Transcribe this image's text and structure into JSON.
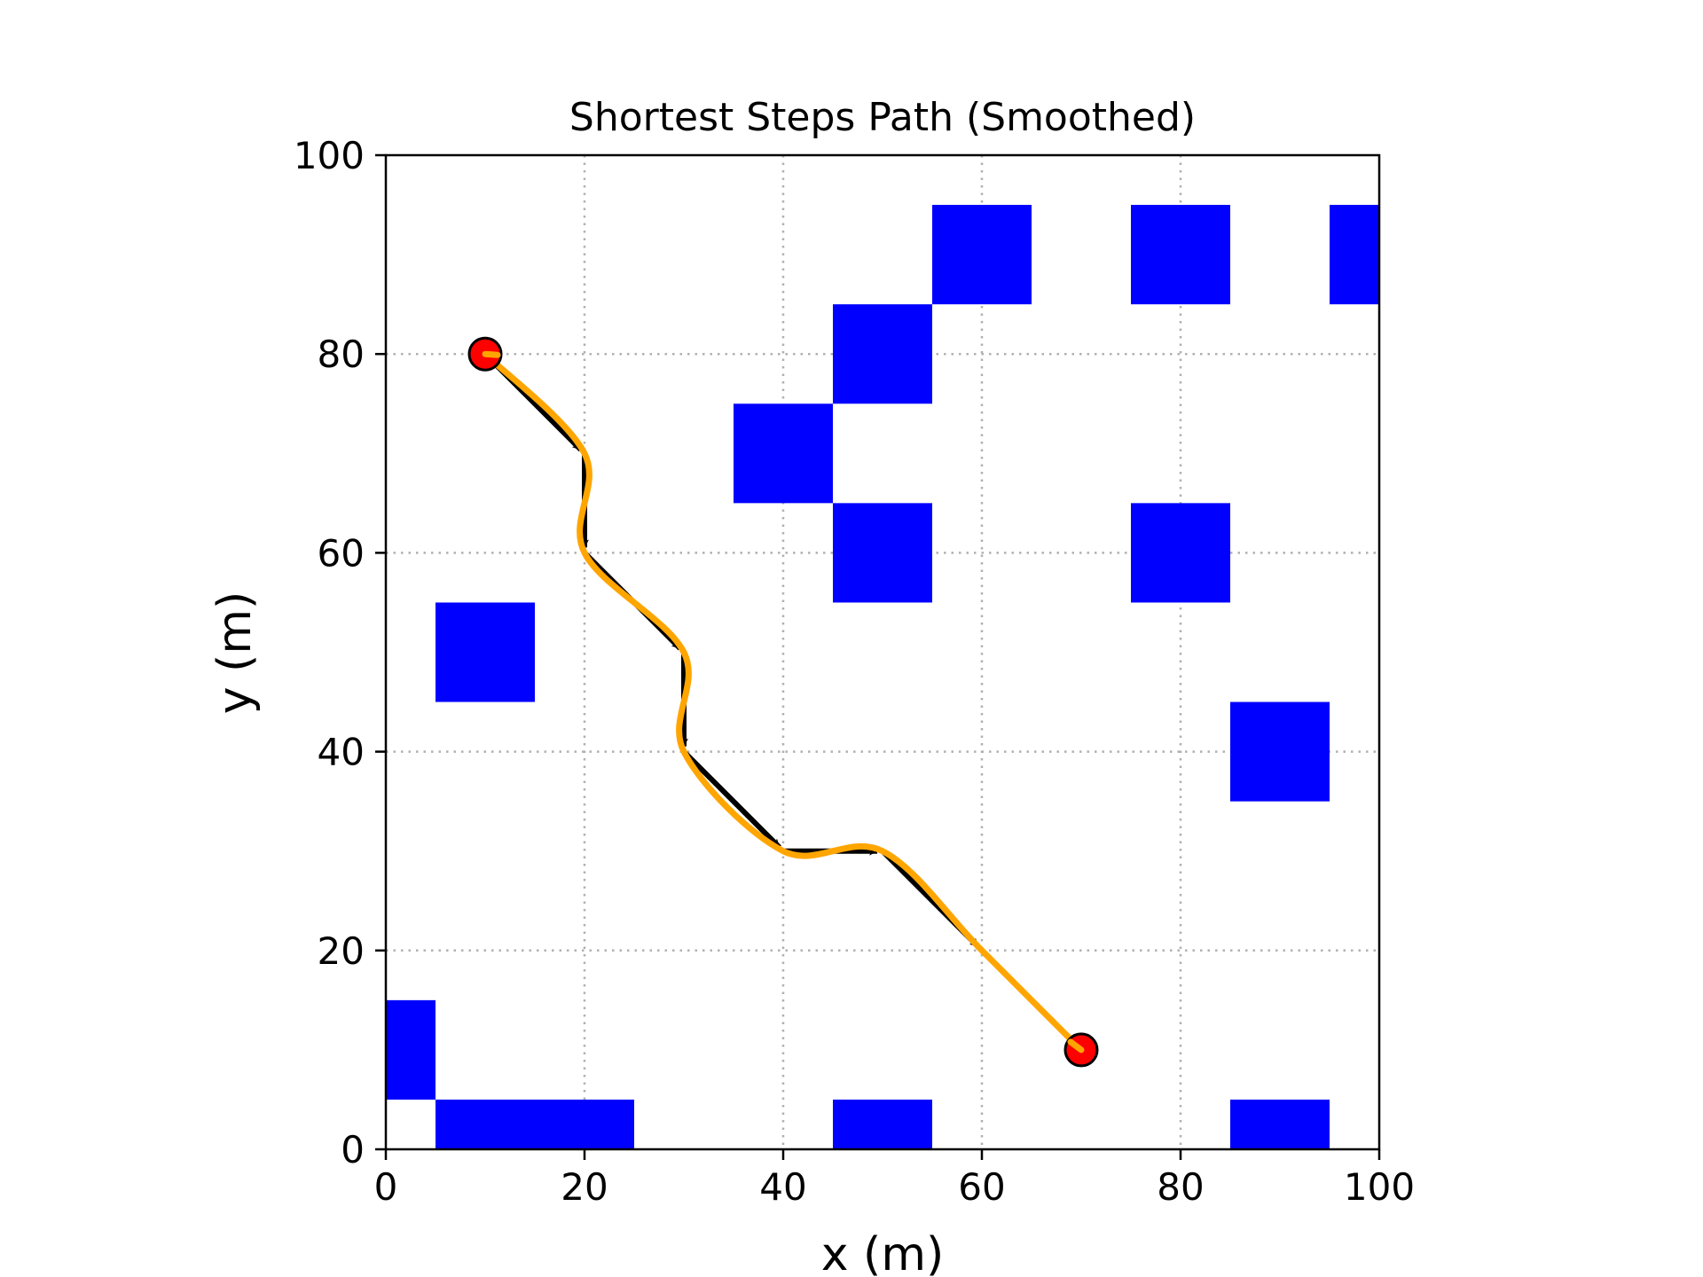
{
  "chart_data": {
    "type": "scatter",
    "title": "Shortest Steps Path (Smoothed)",
    "xlabel": "x (m)",
    "ylabel": "y (m)",
    "xlim": [
      0,
      100
    ],
    "ylim": [
      0,
      100
    ],
    "x_ticks": [
      0,
      20,
      40,
      60,
      80,
      100
    ],
    "y_ticks": [
      0,
      20,
      40,
      60,
      80,
      100
    ],
    "grid": true,
    "obstacle_cell_size": 10,
    "obstacle_color": "#0000ff",
    "obstacles": [
      {
        "x": 60,
        "y": 90
      },
      {
        "x": 80,
        "y": 90
      },
      {
        "x": 100,
        "y": 90
      },
      {
        "x": 50,
        "y": 80
      },
      {
        "x": 40,
        "y": 70
      },
      {
        "x": 50,
        "y": 60
      },
      {
        "x": 80,
        "y": 60
      },
      {
        "x": 10,
        "y": 50
      },
      {
        "x": 90,
        "y": 40
      },
      {
        "x": 0,
        "y": 10
      },
      {
        "x": 10,
        "y": 0
      },
      {
        "x": 20,
        "y": 0
      },
      {
        "x": 50,
        "y": 0
      },
      {
        "x": 90,
        "y": 0
      }
    ],
    "path_steps": [
      [
        10,
        80
      ],
      [
        20,
        70
      ],
      [
        20,
        60
      ],
      [
        30,
        50
      ],
      [
        30,
        40
      ],
      [
        40,
        30
      ],
      [
        50,
        30
      ],
      [
        60,
        20
      ],
      [
        70,
        10
      ]
    ],
    "path_color": "#000000",
    "smoothed_path_color": "#ffa500",
    "start": [
      10,
      80
    ],
    "goal": [
      70,
      10
    ],
    "endpoint_color": "#ff0000"
  }
}
